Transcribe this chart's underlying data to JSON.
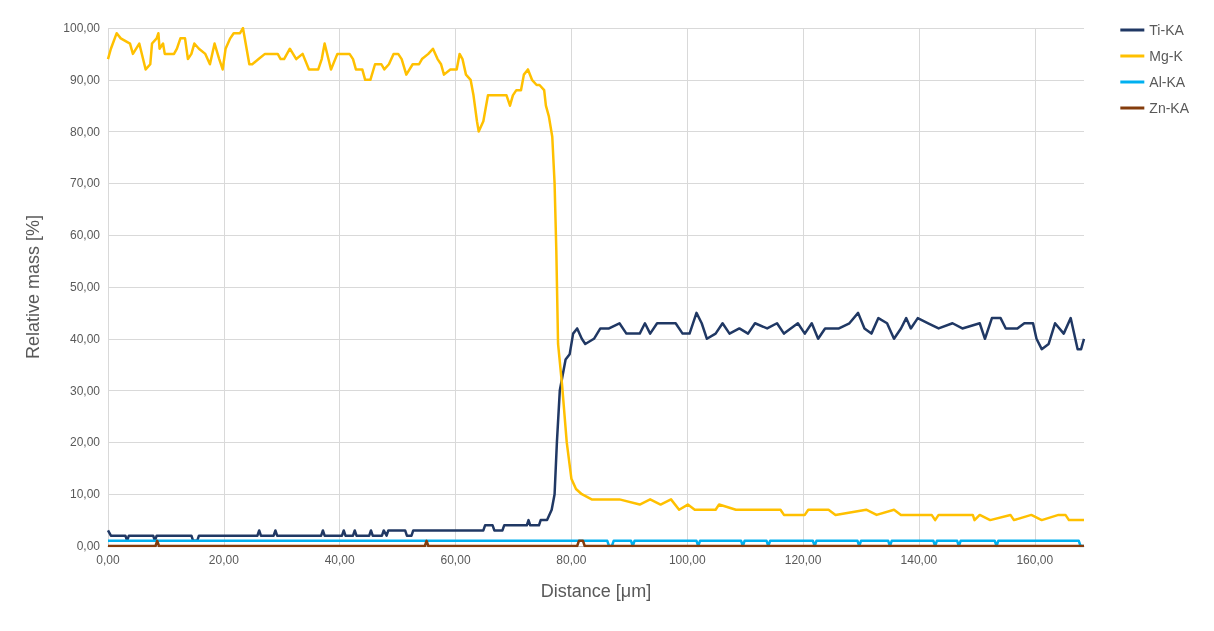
{
  "chart_data": {
    "type": "line",
    "xlabel": "Distance [μm]",
    "ylabel": "Relative mass [%]",
    "xlim": [
      0,
      168.5
    ],
    "ylim": [
      0,
      100
    ],
    "xticks": [
      {
        "value": 0,
        "label": "0,00"
      },
      {
        "value": 20,
        "label": "20,00"
      },
      {
        "value": 40,
        "label": "40,00"
      },
      {
        "value": 60,
        "label": "60,00"
      },
      {
        "value": 80,
        "label": "80,00"
      },
      {
        "value": 100,
        "label": "100,00"
      },
      {
        "value": 120,
        "label": "120,00"
      },
      {
        "value": 140,
        "label": "140,00"
      },
      {
        "value": 160,
        "label": "160,00"
      }
    ],
    "yticks": [
      {
        "value": 0,
        "label": "0,00"
      },
      {
        "value": 10,
        "label": "10,00"
      },
      {
        "value": 20,
        "label": "20,00"
      },
      {
        "value": 30,
        "label": "30,00"
      },
      {
        "value": 40,
        "label": "40,00"
      },
      {
        "value": 50,
        "label": "50,00"
      },
      {
        "value": 60,
        "label": "60,00"
      },
      {
        "value": 70,
        "label": "70,00"
      },
      {
        "value": 80,
        "label": "80,00"
      },
      {
        "value": 90,
        "label": "90,00"
      },
      {
        "value": 100,
        "label": "100,00"
      }
    ],
    "grid": true,
    "legend": "right",
    "marker": "none",
    "line_style": "solid",
    "series": [
      {
        "name": "Ti-KA",
        "color": "#203864",
        "x": [
          0,
          0.5,
          3,
          3.3,
          3.6,
          7.8,
          8.1,
          8.4,
          14.4,
          14.7,
          15.4,
          15.7,
          25.8,
          26.1,
          26.4,
          28.6,
          28.9,
          29.2,
          36.8,
          37.1,
          37.4,
          40.4,
          40.7,
          41,
          42.3,
          42.6,
          42.9,
          45.1,
          45.4,
          45.7,
          47.3,
          47.6,
          48.1,
          48.4,
          51.3,
          51.6,
          52.4,
          52.7,
          64.8,
          65.1,
          66.4,
          66.7,
          68.1,
          68.4,
          72.3,
          72.6,
          72.9,
          74.4,
          74.7,
          75.8,
          76.6,
          77.1,
          77.5,
          78,
          79,
          79.7,
          80.3,
          81,
          81.8,
          82.4,
          83.9,
          85,
          86.5,
          88.3,
          89.5,
          91.8,
          92.7,
          93.6,
          94.8,
          98,
          99.2,
          100.4,
          101.6,
          102.5,
          103.4,
          104.9,
          106.1,
          107.3,
          109,
          110.5,
          111.7,
          113.8,
          115.5,
          116.7,
          119.1,
          120.3,
          121.5,
          122.6,
          123.8,
          126.2,
          128,
          129.5,
          130.6,
          131.8,
          133,
          134.5,
          135.7,
          136.9,
          137.8,
          138.6,
          139.8,
          141.6,
          143.4,
          145.8,
          147.5,
          150.5,
          151.4,
          152.6,
          154.1,
          155,
          157,
          158.2,
          159.7,
          160.3,
          161.2,
          162.4,
          163.5,
          165,
          166.2,
          167.4,
          168,
          168.5
        ],
        "values": [
          3,
          2,
          2,
          1,
          2,
          2,
          1,
          2,
          2,
          1,
          1,
          2,
          2,
          3,
          2,
          2,
          3,
          2,
          2,
          3,
          2,
          2,
          3,
          2,
          2,
          3,
          2,
          2,
          3,
          2,
          2,
          3,
          2,
          3,
          3,
          2,
          2,
          3,
          3,
          4,
          4,
          3,
          3,
          4,
          4,
          5,
          4,
          4,
          5,
          5,
          7,
          10,
          20,
          30,
          36,
          37,
          41,
          42,
          40,
          39,
          40,
          42,
          42,
          43,
          41,
          41,
          43,
          41,
          43,
          43,
          41,
          41,
          45,
          43,
          40,
          41,
          43,
          41,
          42,
          41,
          43,
          42,
          43,
          41,
          43,
          41,
          43,
          40,
          42,
          42,
          43,
          45,
          42,
          41,
          44,
          43,
          40,
          42,
          44,
          42,
          44,
          43,
          42,
          43,
          42,
          43,
          40,
          44,
          44,
          42,
          42,
          43,
          43,
          40,
          38,
          39,
          43,
          41,
          44,
          38,
          38,
          40
        ]
      },
      {
        "name": "Mg-K",
        "color": "#ffc000",
        "x": [
          0,
          0.5,
          1.5,
          2.2,
          3.8,
          4.3,
          5.4,
          6.5,
          7.3,
          7.6,
          8.4,
          8.7,
          8.9,
          9.5,
          9.8,
          11.4,
          11.9,
          12.5,
          13.3,
          13.8,
          14.4,
          14.9,
          15.7,
          16.8,
          17.6,
          18.4,
          19.2,
          19.8,
          20.3,
          21.1,
          21.7,
          22.8,
          23.3,
          24.4,
          24.9,
          26,
          27.1,
          29.3,
          29.8,
          30.4,
          31.4,
          32.5,
          33.6,
          34.7,
          35.8,
          36.3,
          36.9,
          37.4,
          38.5,
          39.6,
          41.7,
          42.3,
          42.8,
          43.9,
          44.4,
          45.3,
          46.1,
          47.2,
          47.7,
          48.5,
          49.3,
          50.1,
          50.7,
          51.5,
          52.6,
          53.7,
          54.2,
          55.3,
          56.1,
          56.9,
          57.5,
          58,
          59.1,
          60.2,
          60.7,
          61.2,
          61.8,
          62.6,
          63.1,
          63.7,
          64,
          64.8,
          65.6,
          68.8,
          69.4,
          69.9,
          70.5,
          71.3,
          71.8,
          72.5,
          73.2,
          74,
          74.5,
          75.3,
          75.6,
          76.1,
          76.7,
          77.1,
          77.4,
          77.7,
          78.4,
          79.2,
          80,
          80.8,
          81.8,
          83.5,
          88.3,
          91.8,
          93.6,
          95.4,
          97.2,
          98.6,
          100.1,
          101.3,
          104.9,
          105.5,
          108.4,
          116.1,
          116.7,
          120.3,
          120.9,
          124.4,
          125.6,
          130.9,
          132.7,
          135.7,
          136.9,
          142.2,
          142.8,
          143.4,
          149.3,
          149.6,
          150.5,
          152.3,
          155.8,
          156.4,
          159.4,
          161.2,
          164.1,
          165.3,
          165.9,
          168.5
        ],
        "values": [
          94,
          96,
          99,
          98,
          97,
          95,
          97,
          92,
          93,
          97,
          98,
          99,
          96,
          97,
          95,
          95,
          96,
          98,
          98,
          94,
          95,
          97,
          96,
          95,
          93,
          97,
          94,
          92,
          96,
          98,
          99,
          99,
          100,
          93,
          93,
          94,
          95,
          95,
          94,
          94,
          96,
          94,
          95,
          92,
          92,
          92,
          94,
          97,
          92,
          95,
          95,
          94,
          92,
          92,
          90,
          90,
          93,
          93,
          92,
          93,
          95,
          95,
          94,
          91,
          93,
          93,
          94,
          95,
          96,
          94,
          93,
          91,
          92,
          92,
          95,
          94,
          91,
          90,
          87,
          82,
          80,
          82,
          87,
          87,
          85,
          87,
          88,
          88,
          91,
          92,
          90,
          89,
          89,
          88,
          85,
          83,
          79,
          70,
          57,
          39,
          31,
          20,
          13,
          11,
          10,
          9,
          9,
          8,
          9,
          8,
          9,
          7,
          8,
          7,
          7,
          8,
          7,
          7,
          6,
          6,
          7,
          7,
          6,
          7,
          6,
          7,
          6,
          6,
          5,
          6,
          6,
          5,
          6,
          5,
          6,
          5,
          6,
          5,
          6,
          6,
          5,
          5
        ]
      },
      {
        "name": "Al-KA",
        "color": "#00b0f0",
        "x": [
          0,
          86.2,
          86.5,
          87,
          87.3,
          90.3,
          90.6,
          90.9,
          101.6,
          101.9,
          102.2,
          109.3,
          109.6,
          109.9,
          113.7,
          114,
          114.3,
          121.7,
          122,
          122.3,
          129.4,
          129.7,
          130,
          134.7,
          135,
          135.3,
          142.5,
          142.8,
          143.1,
          146.6,
          146.9,
          147.2,
          153.1,
          153.4,
          153.7,
          167.6,
          167.9,
          168.5
        ],
        "values": [
          1,
          1,
          0,
          0,
          1,
          1,
          0,
          1,
          1,
          0,
          1,
          1,
          0,
          1,
          1,
          0,
          1,
          1,
          0,
          1,
          1,
          0,
          1,
          1,
          0,
          1,
          1,
          0,
          1,
          1,
          0,
          1,
          1,
          0,
          1,
          1,
          0,
          0
        ]
      },
      {
        "name": "Zn-KA",
        "color": "#843c0c",
        "x": [
          0,
          8.2,
          8.5,
          8.8,
          54.7,
          55,
          55.3,
          81,
          81.3,
          82,
          82.3,
          168.5
        ],
        "values": [
          0,
          0,
          1,
          0,
          0,
          1,
          0,
          0,
          1,
          1,
          0,
          0
        ]
      }
    ]
  }
}
